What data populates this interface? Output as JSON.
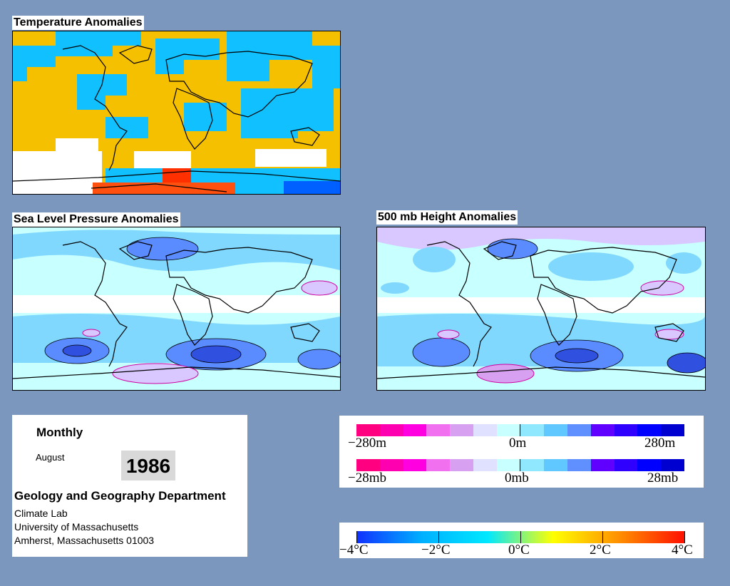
{
  "panels": {
    "temperature": {
      "title": "Temperature Anomalies"
    },
    "slp": {
      "title": "Sea Level Pressure Anomalies"
    },
    "height500": {
      "title": "500 mb Height Anomalies"
    }
  },
  "info": {
    "period": "Monthly",
    "month": "August",
    "year": "1986",
    "department": "Geology and Geography Department",
    "lines": [
      "Climate Lab",
      "University of Massachusetts",
      "Amherst, Massachusetts 01003"
    ]
  },
  "legends": {
    "height": {
      "min_label": "−280m",
      "mid_label": "0m",
      "max_label": "280m"
    },
    "pressure": {
      "min_label": "−28mb",
      "mid_label": "0mb",
      "max_label": "28mb"
    },
    "temperature": {
      "labels": [
        "−4°C",
        "−2°C",
        "0°C",
        "2°C",
        "4°C"
      ]
    }
  },
  "colors": {
    "background": "#7b97bd",
    "anomaly_scale": [
      "#ff0080",
      "#ff00b0",
      "#ff00e0",
      "#f070f0",
      "#d8a0f0",
      "#e0e0ff",
      "#c8ffff",
      "#90e8ff",
      "#60c8ff",
      "#6090ff",
      "#6000ff",
      "#3000ff",
      "#0000ff",
      "#0000d0"
    ],
    "temperature_scale": [
      "#1030ff",
      "#00b0ff",
      "#00e8ff",
      "#ffff00",
      "#ff9000",
      "#ff1000"
    ]
  }
}
